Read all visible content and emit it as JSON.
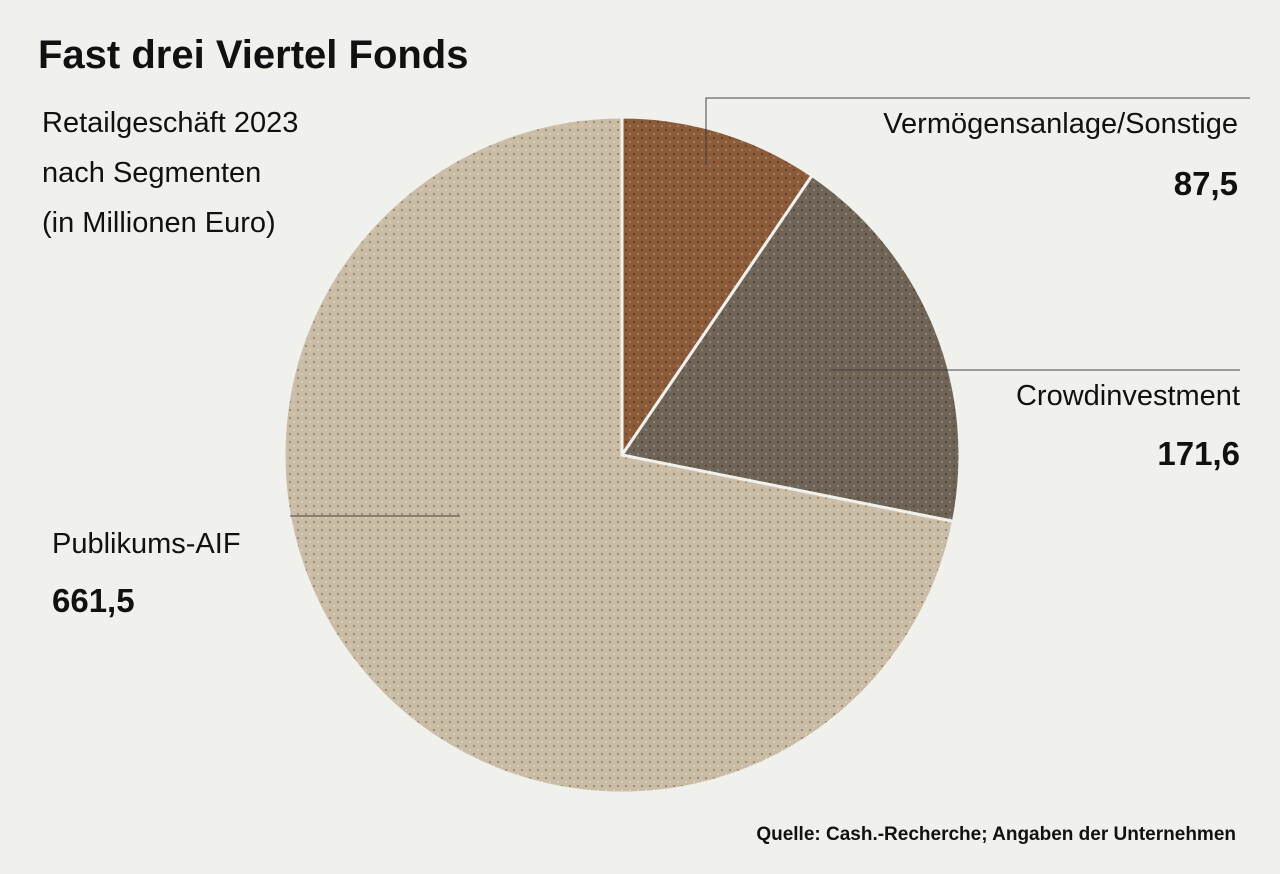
{
  "chart_data": {
    "type": "pie",
    "title": "Fast drei Viertel Fonds",
    "subtitle": [
      "Retailgeschäft 2023",
      "nach Segmenten",
      "(in Millionen Euro)"
    ],
    "categories": [
      "Vermögensanlage/Sonstige",
      "Crowdinvestment",
      "Publikums-AIF"
    ],
    "values": [
      87.5,
      171.6,
      661.5
    ],
    "value_labels": [
      "87,5",
      "171,6",
      "661,5"
    ],
    "colors": [
      "#8c5b39",
      "#6f6455",
      "#cbbca6"
    ],
    "source": "Quelle: Cash.-Recherche; Angaben der Unternehmen"
  }
}
